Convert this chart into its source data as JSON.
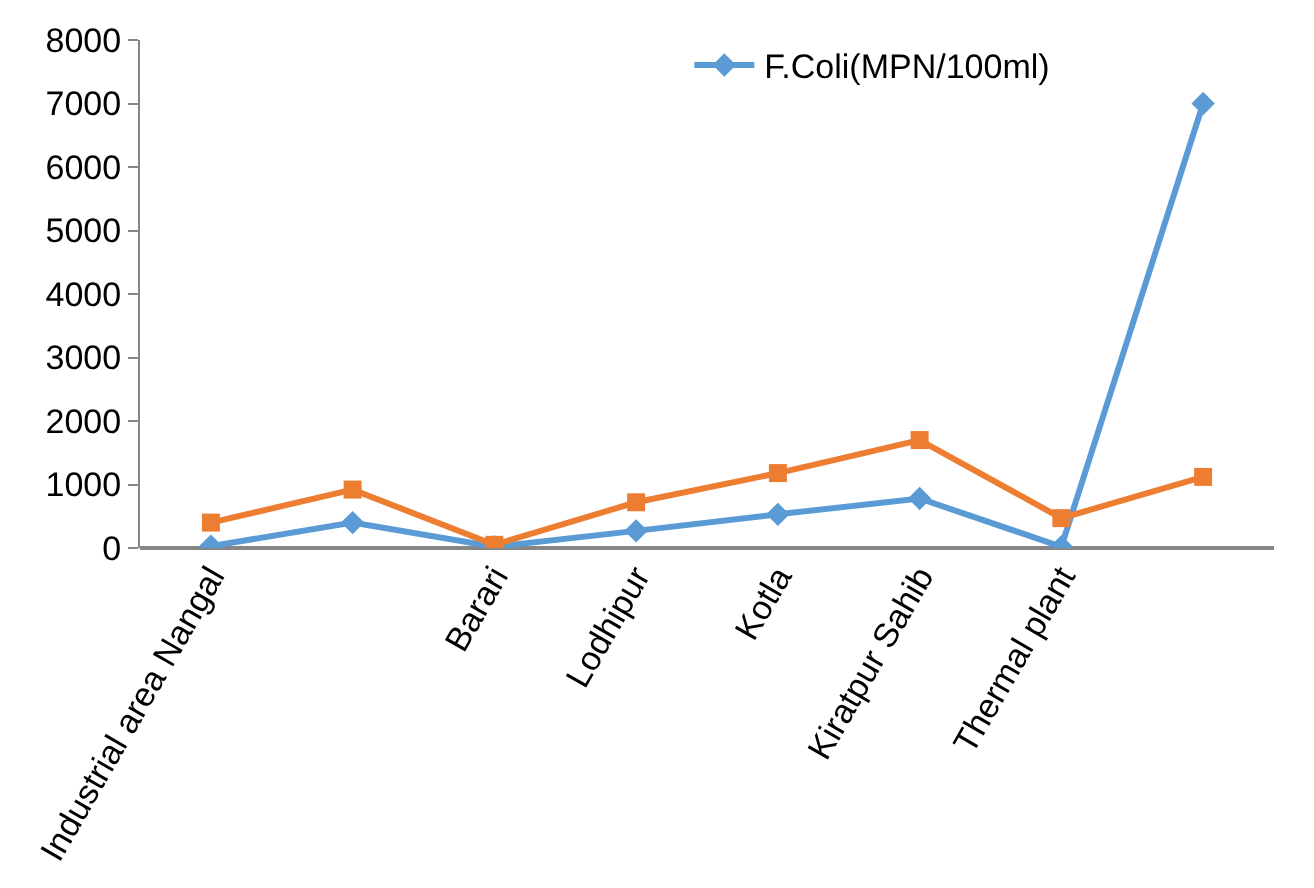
{
  "chart_data": {
    "type": "line",
    "categories": [
      "Industrial area Nangal",
      null,
      "Barari",
      "Lodhipur",
      "Kotla",
      "Kiratpur Sahib",
      "Thermal plant",
      null
    ],
    "series": [
      {
        "name": "F.Coli(MPN/100ml)",
        "color": "#5b9bd5",
        "marker": "diamond",
        "values": [
          30,
          400,
          20,
          270,
          530,
          780,
          20,
          7000
        ]
      },
      {
        "color": "#ed7d31",
        "marker": "square",
        "values": [
          400,
          920,
          50,
          720,
          1180,
          1700,
          470,
          1120
        ]
      }
    ],
    "ylim": [
      0,
      8000
    ],
    "yticks": [
      0,
      1000,
      2000,
      3000,
      4000,
      5000,
      6000,
      7000,
      8000
    ],
    "grid": false,
    "legend": "top right"
  }
}
